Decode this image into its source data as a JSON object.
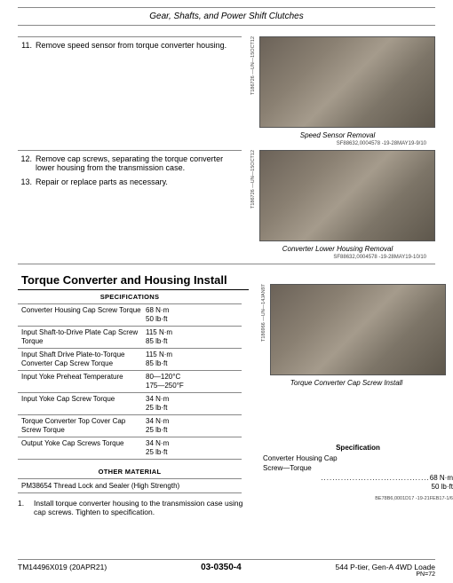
{
  "header_title": "Gear, Shafts, and Power Shift Clutches",
  "steps_a": [
    {
      "num": "11.",
      "text": "Remove speed sensor from torque converter housing."
    }
  ],
  "img_a": {
    "caption": "Speed Sensor Removal",
    "side": "T186726 —UN—15OCT12",
    "subcap": "SF88632,0004578 -19-28MAY19-9/10"
  },
  "steps_b": [
    {
      "num": "12.",
      "text": "Remove cap screws, separating the torque converter lower housing from the transmission case."
    },
    {
      "num": "13.",
      "text": "Repair or replace parts as necessary."
    }
  ],
  "img_b": {
    "caption": "Converter Lower Housing Removal",
    "side": "T186726 —UN—15OCT12",
    "subcap": "SF88632,0004578 -19-28MAY19-10/10"
  },
  "section_title": "Torque Converter and Housing Install",
  "spec_header": "SPECIFICATIONS",
  "specs": [
    {
      "label": "Converter Housing Cap Screw Torque",
      "val": "68 N·m\n50 lb·ft"
    },
    {
      "label": "Input Shaft-to-Drive Plate Cap Screw Torque",
      "val": "115 N·m\n85 lb·ft"
    },
    {
      "label": "Input Shaft Drive Plate-to-Torque Converter Cap Screw Torque",
      "val": "115 N·m\n85 lb·ft"
    },
    {
      "label": "Input Yoke Preheat Temperature",
      "val": "80—120°C\n175—250°F"
    },
    {
      "label": "Input Yoke Cap Screw Torque",
      "val": "34 N·m\n25 lb·ft"
    },
    {
      "label": "Torque Converter Top Cover Cap Screw Torque",
      "val": "34 N·m\n25 lb·ft"
    },
    {
      "label": "Output Yoke Cap Screws Torque",
      "val": "34 N·m\n25 lb·ft"
    }
  ],
  "other_header": "OTHER MATERIAL",
  "other_row": "PM38654 Thread Lock and Sealer (High Strength)",
  "img_c": {
    "caption": "Torque Converter Cap Screw Install",
    "side": "T186966 —UN—14JAN97"
  },
  "inline_spec_title": "Specification",
  "inline_spec_label": "Converter Housing Cap\nScrew—Torque",
  "inline_spec_v1": "68 N·m",
  "inline_spec_v2": "50 lb·ft",
  "inline_ref": "BE78B6,0001D17 -19-21FEB17-1/6",
  "install_step": {
    "num": "1.",
    "text": "Install torque converter housing to the transmission case using cap screws. Tighten to specification."
  },
  "footer": {
    "left": "TM14496X019 (20APR21)",
    "center": "03-0350-4",
    "right": "544 P-tier, Gen-A 4WD Loade",
    "pn": "PN=72"
  },
  "colors": {
    "rule": "#888888"
  }
}
